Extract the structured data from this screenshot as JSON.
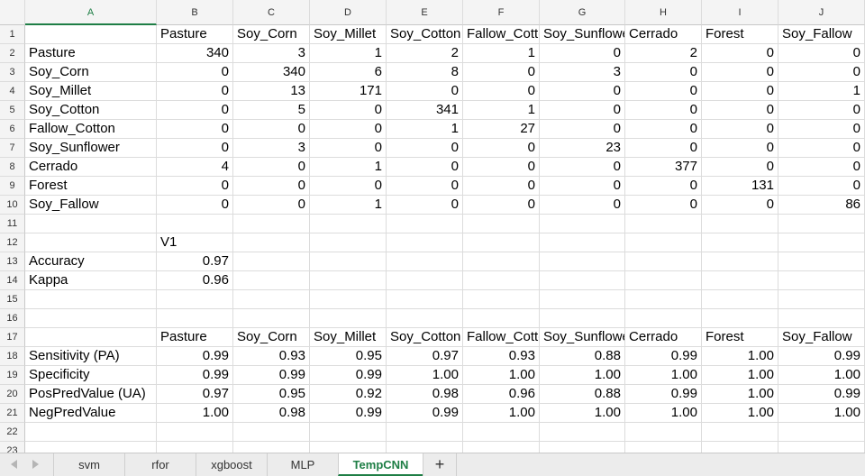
{
  "columns": [
    "A",
    "B",
    "C",
    "D",
    "E",
    "F",
    "G",
    "H",
    "I",
    "J"
  ],
  "active_column": "A",
  "cells": {
    "1": [
      "",
      "Pasture",
      "Soy_Corn",
      "Soy_Millet",
      "Soy_Cotton",
      "Fallow_Cotton",
      "Soy_Sunflower",
      "Cerrado",
      "Forest",
      "Soy_Fallow"
    ],
    "2": [
      "Pasture",
      "340",
      "3",
      "1",
      "2",
      "1",
      "0",
      "2",
      "0",
      "0"
    ],
    "3": [
      "Soy_Corn",
      "0",
      "340",
      "6",
      "8",
      "0",
      "3",
      "0",
      "0",
      "0"
    ],
    "4": [
      "Soy_Millet",
      "0",
      "13",
      "171",
      "0",
      "0",
      "0",
      "0",
      "0",
      "1"
    ],
    "5": [
      "Soy_Cotton",
      "0",
      "5",
      "0",
      "341",
      "1",
      "0",
      "0",
      "0",
      "0"
    ],
    "6": [
      "Fallow_Cotton",
      "0",
      "0",
      "0",
      "1",
      "27",
      "0",
      "0",
      "0",
      "0"
    ],
    "7": [
      "Soy_Sunflower",
      "0",
      "3",
      "0",
      "0",
      "0",
      "23",
      "0",
      "0",
      "0"
    ],
    "8": [
      "Cerrado",
      "4",
      "0",
      "1",
      "0",
      "0",
      "0",
      "377",
      "0",
      "0"
    ],
    "9": [
      "Forest",
      "0",
      "0",
      "0",
      "0",
      "0",
      "0",
      "0",
      "131",
      "0"
    ],
    "10": [
      "Soy_Fallow",
      "0",
      "0",
      "1",
      "0",
      "0",
      "0",
      "0",
      "0",
      "86"
    ],
    "11": [
      "",
      "",
      "",
      "",
      "",
      "",
      "",
      "",
      "",
      ""
    ],
    "12": [
      "",
      "V1",
      "",
      "",
      "",
      "",
      "",
      "",
      "",
      ""
    ],
    "13": [
      "Accuracy",
      "0.97",
      "",
      "",
      "",
      "",
      "",
      "",
      "",
      ""
    ],
    "14": [
      "Kappa",
      "0.96",
      "",
      "",
      "",
      "",
      "",
      "",
      "",
      ""
    ],
    "15": [
      "",
      "",
      "",
      "",
      "",
      "",
      "",
      "",
      "",
      ""
    ],
    "16": [
      "",
      "",
      "",
      "",
      "",
      "",
      "",
      "",
      "",
      ""
    ],
    "17": [
      "",
      "Pasture",
      "Soy_Corn",
      "Soy_Millet",
      "Soy_Cotton",
      "Fallow_Cotton",
      "Soy_Sunflower",
      "Cerrado",
      "Forest",
      "Soy_Fallow"
    ],
    "18": [
      "Sensitivity (PA)",
      "0.99",
      "0.93",
      "0.95",
      "0.97",
      "0.93",
      "0.88",
      "0.99",
      "1.00",
      "0.99"
    ],
    "19": [
      "Specificity",
      "0.99",
      "0.99",
      "0.99",
      "1.00",
      "1.00",
      "1.00",
      "1.00",
      "1.00",
      "1.00"
    ],
    "20": [
      "PosPredValue (UA)",
      "0.97",
      "0.95",
      "0.92",
      "0.98",
      "0.96",
      "0.88",
      "0.99",
      "1.00",
      "0.99"
    ],
    "21": [
      "NegPredValue",
      "1.00",
      "0.98",
      "0.99",
      "0.99",
      "1.00",
      "1.00",
      "1.00",
      "1.00",
      "1.00"
    ],
    "22": [
      "",
      "",
      "",
      "",
      "",
      "",
      "",
      "",
      "",
      ""
    ],
    "23": [
      "",
      "",
      "",
      "",
      "",
      "",
      "",
      "",
      "",
      ""
    ]
  },
  "sheet_tabs": [
    {
      "label": "svm",
      "active": false
    },
    {
      "label": "rfor",
      "active": false
    },
    {
      "label": "xgboost",
      "active": false
    },
    {
      "label": "MLP",
      "active": false
    },
    {
      "label": "TempCNN",
      "active": true
    }
  ],
  "add_sheet_label": "+",
  "icons": {
    "scroll_left": "triangle-left-icon",
    "scroll_right": "triangle-right-icon"
  },
  "colors": {
    "accent": "#1e7e45",
    "header_bg": "#f4f4f4",
    "grid_line": "#dcdcdc"
  }
}
